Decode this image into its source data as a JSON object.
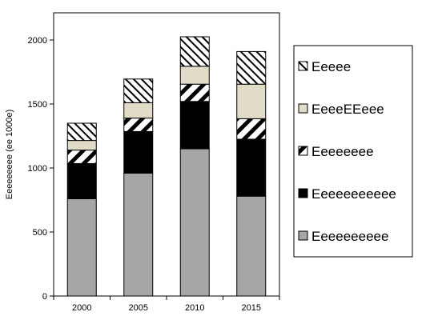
{
  "chart_data": {
    "type": "bar",
    "stacked": true,
    "categories": [
      "2000",
      "2005",
      "2010",
      "2015"
    ],
    "ylabel": "Eeeeeeeee (ee 1000e)",
    "xlabel": "",
    "ylim": [
      0,
      2000
    ],
    "yticks": [
      0,
      500,
      1000,
      1500,
      2000
    ],
    "grid": false,
    "legend_position": "right",
    "series": [
      {
        "name": "Eeeeeeeeee",
        "values": [
          760,
          960,
          1150,
          780
        ],
        "color": "#a6a6a6",
        "pattern": "solid"
      },
      {
        "name": "Eeeeeeeeeee",
        "values": [
          275,
          325,
          370,
          445
        ],
        "color": "#000000",
        "pattern": "solid"
      },
      {
        "name": "Eeeeeeee",
        "values": [
          105,
          105,
          135,
          160
        ],
        "color": "#000000",
        "pattern": "wide-diagonal-stripes"
      },
      {
        "name": "EeeeEEeee",
        "values": [
          75,
          120,
          140,
          270
        ],
        "color": "#e0dcc8",
        "pattern": "solid"
      },
      {
        "name": "Eeeee",
        "values": [
          135,
          185,
          230,
          255
        ],
        "color": "#000000",
        "pattern": "narrow-diagonal-stripes"
      }
    ]
  }
}
